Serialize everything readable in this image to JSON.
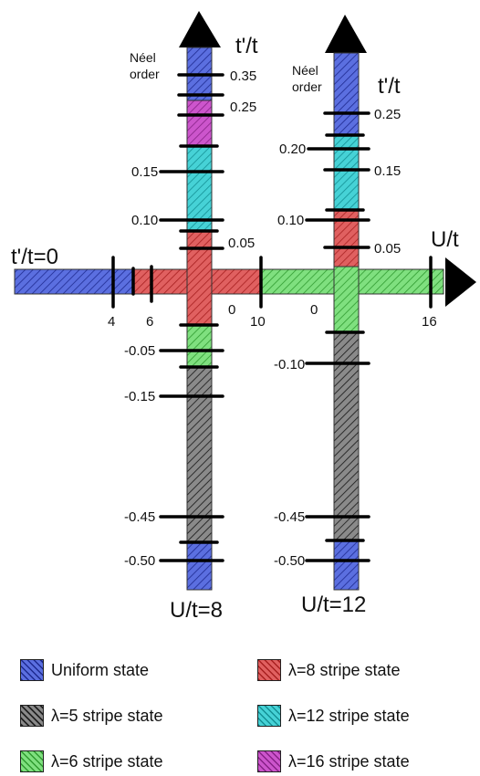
{
  "colors": {
    "uniform": "#5b6fe0",
    "stripe8": "#e06060",
    "stripe5": "#6a6a6a",
    "stripe12": "#46d2d6",
    "stripe6": "#7fe07f",
    "stripe16": "#cc55cc"
  },
  "axes": {
    "horizontal_label": "U/t",
    "left_start_label": "t'/t=0",
    "left_vertical_label": "t'/t",
    "right_vertical_label": "t'/t",
    "left_column_label": "U/t=8",
    "right_column_label": "U/t=12",
    "u_ticks": [
      "4",
      "6",
      "10",
      "16"
    ],
    "left_zero": "0",
    "right_zero": "0",
    "neel_left": "Néel\norder",
    "neel_right": "Néel\norder"
  },
  "left_column": {
    "tick_labels_right": [
      "0.35",
      "0.25",
      "0.05"
    ],
    "tick_labels_left": [
      "0.15",
      "0.10",
      "-0.05",
      "-0.15",
      "-0.45",
      "-0.50"
    ]
  },
  "right_column": {
    "tick_labels_right": [
      "0.25",
      "0.15",
      "0.05"
    ],
    "tick_labels_left": [
      "0.20",
      "0.10",
      "-0.10",
      "-0.45",
      "-0.50"
    ]
  },
  "legend": [
    {
      "key": "uniform",
      "label": "Uniform state"
    },
    {
      "key": "stripe8",
      "label": "λ=8 stripe state"
    },
    {
      "key": "stripe5",
      "label": "λ=5 stripe state"
    },
    {
      "key": "stripe12",
      "label": "λ=12 stripe state"
    },
    {
      "key": "stripe6",
      "label": "λ=6 stripe state"
    },
    {
      "key": "stripe16",
      "label": "λ=16 stripe state"
    }
  ]
}
